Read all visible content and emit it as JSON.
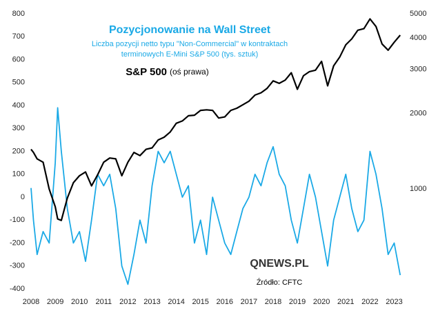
{
  "chart_data": {
    "type": "line",
    "title": "Pozycjonowanie na Wall Street",
    "subtitle": [
      "Liczba pozycji netto typu \"Non-Commercial\" w kontraktach",
      "terminowych E-Mini S&P 500 (tys. sztuk)"
    ],
    "annotation": "(oś prawa)",
    "logo": "QNEWS.PL",
    "source": "Źródło: CFTC",
    "x": [
      2008,
      2008.1,
      2008.25,
      2008.5,
      2008.75,
      2009,
      2009.1,
      2009.25,
      2009.5,
      2009.75,
      2010,
      2010.25,
      2010.5,
      2010.75,
      2011,
      2011.25,
      2011.5,
      2011.75,
      2012,
      2012.25,
      2012.5,
      2012.75,
      2013,
      2013.25,
      2013.5,
      2013.75,
      2014,
      2014.25,
      2014.5,
      2014.75,
      2015,
      2015.25,
      2015.5,
      2015.75,
      2016,
      2016.25,
      2016.5,
      2016.75,
      2017,
      2017.25,
      2017.5,
      2017.75,
      2018,
      2018.25,
      2018.5,
      2018.75,
      2019,
      2019.25,
      2019.5,
      2019.75,
      2020,
      2020.25,
      2020.5,
      2020.75,
      2021,
      2021.25,
      2021.5,
      2021.75,
      2022,
      2022.25,
      2022.5,
      2022.75,
      2023,
      2023.25
    ],
    "series": [
      {
        "color": "#1aa9e6",
        "values": [
          40,
          -100,
          -250,
          -150,
          -200,
          150,
          390,
          200,
          -50,
          -200,
          -150,
          -280,
          -100,
          100,
          50,
          100,
          -50,
          -300,
          -380,
          -250,
          -100,
          -200,
          50,
          200,
          150,
          200,
          100,
          0,
          50,
          -200,
          -100,
          -250,
          0,
          -100,
          -200,
          -250,
          -150,
          -50,
          0,
          100,
          50,
          150,
          220,
          100,
          50,
          -100,
          -200,
          -50,
          100,
          0,
          -150,
          -300,
          -100,
          0,
          100,
          -50,
          -150,
          -100,
          200,
          100,
          -50,
          -250,
          -200,
          -340
        ]
      },
      {
        "name": "S&P 500",
        "color": "#000000",
        "axis": "y2",
        "values": [
          1440,
          1400,
          1320,
          1280,
          1000,
          850,
          760,
          750,
          920,
          1060,
          1130,
          1170,
          1030,
          1140,
          1280,
          1330,
          1320,
          1130,
          1280,
          1400,
          1360,
          1440,
          1460,
          1570,
          1610,
          1690,
          1830,
          1870,
          1960,
          1970,
          2060,
          2070,
          2060,
          1920,
          1940,
          2060,
          2100,
          2170,
          2240,
          2370,
          2420,
          2520,
          2700,
          2640,
          2720,
          2910,
          2500,
          2830,
          2940,
          2980,
          3230,
          2580,
          3100,
          3360,
          3760,
          3970,
          4300,
          4360,
          4770,
          4450,
          3790,
          3580,
          3850,
          4110
        ]
      }
    ],
    "xlim": [
      2008,
      2023.3
    ],
    "xticks": [
      2008,
      2009,
      2010,
      2011,
      2012,
      2013,
      2014,
      2015,
      2016,
      2017,
      2018,
      2019,
      2020,
      2021,
      2022,
      2023
    ],
    "ylim": [
      -400,
      800
    ],
    "yticks": [
      -400,
      -300,
      -200,
      -100,
      0,
      100,
      200,
      300,
      400,
      500,
      600,
      700,
      800
    ],
    "y2lim": [
      400,
      5000
    ],
    "y2ticks": [
      1000,
      2000,
      3000,
      4000,
      5000
    ],
    "y2log": true
  }
}
